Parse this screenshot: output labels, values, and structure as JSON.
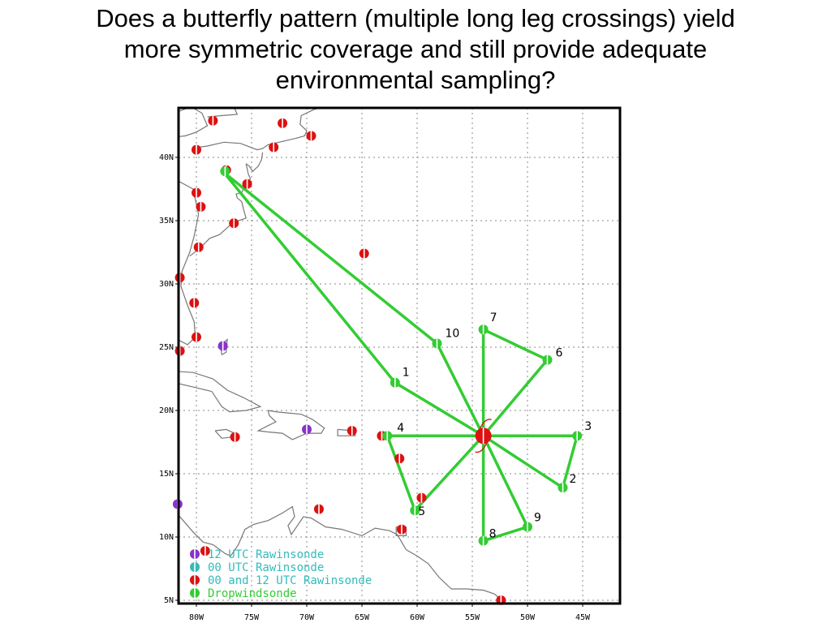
{
  "title_lines": [
    "Does a butterfly pattern (multiple long leg crossings) yield",
    "more symmetric coverage and still provide adequate",
    "environmental sampling?"
  ],
  "colors": {
    "track": "#33cc33",
    "rawinsonde_12utc": "#8833cc",
    "rawinsonde_00utc": "#33bbbb",
    "rawinsonde_00_12utc": "#dd1111",
    "dropwindsonde": "#33cc33",
    "coast": "#777777",
    "grid": "#888888",
    "legend_text_cyan": "#33bbbb",
    "legend_text_green": "#33cc33"
  },
  "map": {
    "lon_range": [
      -82,
      -42
    ],
    "lat_range": [
      5,
      44
    ],
    "lon_ticks": [
      {
        "lon": -80,
        "label": "80W"
      },
      {
        "lon": -75,
        "label": "75W"
      },
      {
        "lon": -70,
        "label": "70W"
      },
      {
        "lon": -65,
        "label": "65W"
      },
      {
        "lon": -60,
        "label": "60W"
      },
      {
        "lon": -55,
        "label": "55W"
      },
      {
        "lon": -50,
        "label": "50W"
      },
      {
        "lon": -45,
        "label": "45W"
      }
    ],
    "lat_ticks": [
      {
        "lat": 40,
        "label": "40N"
      },
      {
        "lat": 35,
        "label": "35N"
      },
      {
        "lat": 30,
        "label": "30N"
      },
      {
        "lat": 25,
        "label": "25N"
      },
      {
        "lat": 20,
        "label": "20N"
      },
      {
        "lat": 15,
        "label": "15N"
      },
      {
        "lat": 10,
        "label": "10N"
      },
      {
        "lat": 5,
        "label": "5N"
      }
    ],
    "storm_center": {
      "lon": -54,
      "lat": 18
    }
  },
  "flight_track": {
    "points": [
      {
        "id": "origin",
        "label": "",
        "lon": -77.5,
        "lat": 38.8
      },
      {
        "id": "wp1",
        "label": "1",
        "lon": -62,
        "lat": 22.2
      },
      {
        "id": "center",
        "label": "",
        "lon": -54,
        "lat": 18
      },
      {
        "id": "wp2",
        "label": "2",
        "lon": -46.8,
        "lat": 13.9
      },
      {
        "id": "wp3",
        "label": "3",
        "lon": -45.5,
        "lat": 18
      },
      {
        "id": "wp4",
        "label": "4",
        "lon": -62.7,
        "lat": 18
      },
      {
        "id": "wp5",
        "label": "5",
        "lon": -60.2,
        "lat": 12.1
      },
      {
        "id": "wp6",
        "label": "6",
        "lon": -48.2,
        "lat": 24
      },
      {
        "id": "wp7",
        "label": "7",
        "lon": -54,
        "lat": 26.4
      },
      {
        "id": "wp8",
        "label": "8",
        "lon": -54,
        "lat": 9.7
      },
      {
        "id": "wp9",
        "label": "9",
        "lon": -50,
        "lat": 10.8
      },
      {
        "id": "wp10",
        "label": "10",
        "lon": -58.2,
        "lat": 25.3
      }
    ],
    "path": [
      "origin",
      "wp1",
      "center",
      "wp2",
      "wp3",
      "wp4",
      "wp5",
      "center",
      "wp6",
      "wp7",
      "wp8",
      "wp9",
      "center",
      "wp10",
      "origin"
    ]
  },
  "rawinsondes_00_12": [
    {
      "lon": -80,
      "lat": 40.6
    },
    {
      "lon": -78.5,
      "lat": 42.9
    },
    {
      "lon": -72.2,
      "lat": 42.7
    },
    {
      "lon": -69.6,
      "lat": 41.7
    },
    {
      "lon": -73,
      "lat": 40.8
    },
    {
      "lon": -77.3,
      "lat": 39
    },
    {
      "lon": -75.4,
      "lat": 37.9
    },
    {
      "lon": -80,
      "lat": 37.2
    },
    {
      "lon": -79.6,
      "lat": 36.1
    },
    {
      "lon": -76.6,
      "lat": 34.8
    },
    {
      "lon": -79.8,
      "lat": 32.9
    },
    {
      "lon": -64.8,
      "lat": 32.4
    },
    {
      "lon": -81.5,
      "lat": 30.5
    },
    {
      "lon": -80.2,
      "lat": 28.5
    },
    {
      "lon": -80,
      "lat": 25.8
    },
    {
      "lon": -81.5,
      "lat": 24.7
    },
    {
      "lon": -76.5,
      "lat": 17.9
    },
    {
      "lon": -65.9,
      "lat": 18.4
    },
    {
      "lon": -63.2,
      "lat": 18
    },
    {
      "lon": -61.6,
      "lat": 16.2
    },
    {
      "lon": -59.6,
      "lat": 13.1
    },
    {
      "lon": -68.9,
      "lat": 12.2
    },
    {
      "lon": -61.4,
      "lat": 10.6
    },
    {
      "lon": -79.2,
      "lat": 8.9
    },
    {
      "lon": -52.4,
      "lat": 5
    }
  ],
  "rawinsondes_12": [
    {
      "lon": -77.6,
      "lat": 25.1
    },
    {
      "lon": -70,
      "lat": 18.5
    },
    {
      "lon": -81.7,
      "lat": 12.6
    }
  ],
  "dropwindsondes": [
    {
      "lon": -62,
      "lat": 22.2
    },
    {
      "lon": -58.2,
      "lat": 25.3
    },
    {
      "lon": -54,
      "lat": 26.4
    },
    {
      "lon": -48.2,
      "lat": 24
    },
    {
      "lon": -45.5,
      "lat": 18
    },
    {
      "lon": -46.8,
      "lat": 13.9
    },
    {
      "lon": -50,
      "lat": 10.8
    },
    {
      "lon": -54,
      "lat": 9.7
    },
    {
      "lon": -60.2,
      "lat": 12.1
    },
    {
      "lon": -62.7,
      "lat": 18
    },
    {
      "lon": -77.4,
      "lat": 38.9
    }
  ],
  "legend": [
    {
      "label": "12 UTC Rawinsonde",
      "symbol": "rawinsonde_12utc",
      "text_color": "legend_text_cyan"
    },
    {
      "label": "00 UTC Rawinsonde",
      "symbol": "rawinsonde_00utc",
      "text_color": "legend_text_cyan"
    },
    {
      "label": "00 and 12 UTC Rawinsonde",
      "symbol": "rawinsonde_00_12utc",
      "text_color": "legend_text_cyan"
    },
    {
      "label": "Dropwindsonde",
      "symbol": "dropwindsonde",
      "text_color": "legend_text_green"
    }
  ],
  "coastlines": [
    [
      [
        -82,
        38.3
      ],
      [
        -80.3,
        37.5
      ],
      [
        -79.8,
        35.5
      ],
      [
        -80.2,
        33.8
      ],
      [
        -80.6,
        32.5
      ],
      [
        -81.3,
        31
      ],
      [
        -81.4,
        29.8
      ],
      [
        -80.8,
        28.3
      ],
      [
        -80.2,
        27
      ],
      [
        -80.1,
        25.8
      ],
      [
        -80.8,
        25.2
      ],
      [
        -81.7,
        25.6
      ],
      [
        -82,
        26.5
      ]
    ],
    [
      [
        -82,
        43.5
      ],
      [
        -80.5,
        44
      ],
      [
        -79.5,
        43.5
      ],
      [
        -79,
        42.5
      ],
      [
        -80,
        42
      ],
      [
        -81,
        41.7
      ],
      [
        -82,
        41.6
      ]
    ],
    [
      [
        -76.6,
        44
      ],
      [
        -76.3,
        43.4
      ],
      [
        -77.7,
        43.3
      ],
      [
        -79,
        43.2
      ]
    ],
    [
      [
        -79.8,
        40.8
      ],
      [
        -79,
        40.9
      ],
      [
        -77.5,
        41.2
      ],
      [
        -76,
        41.1
      ],
      [
        -74.5,
        40.6
      ],
      [
        -74,
        40.7
      ],
      [
        -73.5,
        41
      ],
      [
        -72,
        41.3
      ],
      [
        -71,
        41.5
      ],
      [
        -70.2,
        41.7
      ],
      [
        -70,
        42.1
      ],
      [
        -70.6,
        42.6
      ],
      [
        -70.5,
        43.3
      ],
      [
        -69.3,
        43.8
      ],
      [
        -68.2,
        44
      ]
    ],
    [
      [
        -74,
        40.4
      ],
      [
        -74.1,
        39.8
      ],
      [
        -74.4,
        39.3
      ],
      [
        -74.9,
        38.9
      ],
      [
        -75.2,
        39.3
      ],
      [
        -75.5,
        39.5
      ]
    ],
    [
      [
        -75.5,
        39.5
      ],
      [
        -75.3,
        38.7
      ],
      [
        -75.1,
        38.3
      ],
      [
        -75.6,
        37.8
      ],
      [
        -75.9,
        37.2
      ],
      [
        -76.4,
        37.1
      ],
      [
        -76.3,
        36.8
      ],
      [
        -75.9,
        36.5
      ],
      [
        -75.7,
        35.8
      ],
      [
        -75.5,
        35.2
      ],
      [
        -76.2,
        35
      ],
      [
        -77,
        34.6
      ],
      [
        -77.9,
        33.9
      ],
      [
        -78.8,
        33.6
      ],
      [
        -79.7,
        32.8
      ],
      [
        -80.6,
        32.2
      ]
    ],
    [
      [
        -82,
        23.1
      ],
      [
        -80.3,
        23
      ],
      [
        -78.5,
        22.5
      ],
      [
        -77.2,
        21.6
      ],
      [
        -75.7,
        21
      ],
      [
        -74.2,
        20.3
      ],
      [
        -75.5,
        20
      ],
      [
        -77,
        19.9
      ],
      [
        -77.7,
        20.3
      ],
      [
        -78.6,
        21.5
      ],
      [
        -80.5,
        21.9
      ],
      [
        -82,
        22.2
      ]
    ],
    [
      [
        -73.5,
        20
      ],
      [
        -72.8,
        19.9
      ],
      [
        -71.7,
        19.8
      ],
      [
        -70.5,
        19.7
      ],
      [
        -69.5,
        19.3
      ],
      [
        -68.4,
        18.6
      ],
      [
        -68.7,
        18.2
      ],
      [
        -70,
        18.2
      ],
      [
        -71.3,
        17.7
      ],
      [
        -72.2,
        18.2
      ],
      [
        -73.5,
        18.3
      ],
      [
        -74.4,
        18.4
      ],
      [
        -73.5,
        18.8
      ],
      [
        -72.8,
        19.1
      ],
      [
        -73.4,
        19.6
      ],
      [
        -73.5,
        20
      ]
    ],
    [
      [
        -78.3,
        18.4
      ],
      [
        -77.3,
        18.5
      ],
      [
        -76.3,
        18.1
      ],
      [
        -76.8,
        17.9
      ],
      [
        -77.7,
        17.8
      ],
      [
        -78.3,
        18.4
      ]
    ],
    [
      [
        -67.2,
        18.5
      ],
      [
        -65.6,
        18.4
      ],
      [
        -65.6,
        18.0
      ],
      [
        -67.2,
        18.0
      ],
      [
        -67.2,
        18.5
      ]
    ],
    [
      [
        -77.7,
        24.4
      ],
      [
        -77.8,
        25.2
      ],
      [
        -77.2,
        25.6
      ],
      [
        -77.3,
        24.6
      ],
      [
        -77.7,
        24.4
      ]
    ],
    [
      [
        -82,
        12.1
      ],
      [
        -81.2,
        11.3
      ],
      [
        -80.3,
        10.4
      ],
      [
        -79.4,
        9.6
      ],
      [
        -78.5,
        9.4
      ],
      [
        -77.4,
        8.7
      ],
      [
        -76.9,
        8.5
      ],
      [
        -76.2,
        9.4
      ],
      [
        -75.6,
        10.6
      ],
      [
        -74.8,
        11
      ],
      [
        -73.5,
        11.3
      ],
      [
        -72.2,
        11.9
      ],
      [
        -71.3,
        12.4
      ],
      [
        -71.1,
        11.6
      ],
      [
        -71.7,
        10.9
      ],
      [
        -71.4,
        10.2
      ],
      [
        -70.3,
        11.6
      ],
      [
        -69.6,
        11.5
      ],
      [
        -68.3,
        10.8
      ],
      [
        -66.8,
        10.6
      ],
      [
        -65,
        10.1
      ],
      [
        -63.8,
        10.7
      ],
      [
        -62.5,
        10.5
      ],
      [
        -61.8,
        10.2
      ],
      [
        -61,
        9
      ],
      [
        -60,
        8.5
      ],
      [
        -59,
        7.9
      ],
      [
        -58,
        6.8
      ],
      [
        -56.9,
        5.9
      ],
      [
        -55.5,
        5.9
      ],
      [
        -54,
        5.8
      ],
      [
        -53,
        5.5
      ],
      [
        -52.3,
        5
      ]
    ],
    [
      [
        -61.9,
        10.8
      ],
      [
        -61,
        10.8
      ],
      [
        -61,
        10.1
      ],
      [
        -61.9,
        10.1
      ],
      [
        -61.9,
        10.8
      ]
    ]
  ]
}
